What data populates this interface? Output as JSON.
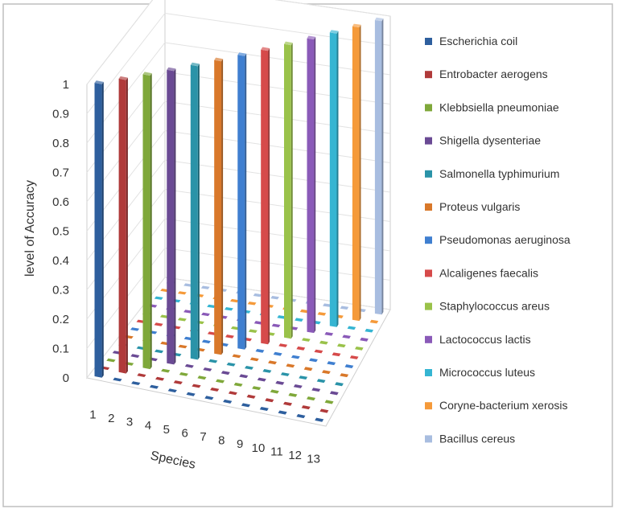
{
  "chart_data": {
    "type": "bar",
    "subtype": "3d-column",
    "xlabel": "Species",
    "ylabel": "level of Accuracy",
    "ylim": [
      0,
      1
    ],
    "yticks": [
      "0",
      "0.1",
      "0.2",
      "0.3",
      "0.4",
      "0.5",
      "0.6",
      "0.7",
      "0.8",
      "0.9",
      "1"
    ],
    "categories": [
      "1",
      "2",
      "3",
      "4",
      "5",
      "6",
      "7",
      "8",
      "9",
      "10",
      "11",
      "12",
      "13"
    ],
    "legend_position": "right",
    "grid": true,
    "series": [
      {
        "name": "Escherichia coil",
        "color": "#2e5f9e",
        "values": [
          1,
          0,
          0,
          0,
          0,
          0,
          0,
          0,
          0,
          0,
          0,
          0,
          0
        ]
      },
      {
        "name": "Entrobacter aerogens",
        "color": "#b03a3a",
        "values": [
          0,
          1,
          0,
          0,
          0,
          0,
          0,
          0,
          0,
          0,
          0,
          0,
          0
        ]
      },
      {
        "name": "Klebbsiella pneumoniae",
        "color": "#7fa83a",
        "values": [
          0,
          0,
          1,
          0,
          0,
          0,
          0,
          0,
          0,
          0,
          0,
          0,
          0
        ]
      },
      {
        "name": "Shigella dysenteriae",
        "color": "#6a4a94",
        "values": [
          0,
          0,
          0,
          1,
          0,
          0,
          0,
          0,
          0,
          0,
          0,
          0,
          0
        ]
      },
      {
        "name": "Salmonella typhimurium",
        "color": "#2a93a8",
        "values": [
          0,
          0,
          0,
          0,
          1,
          0,
          0,
          0,
          0,
          0,
          0,
          0,
          0
        ]
      },
      {
        "name": "Proteus vulgaris",
        "color": "#d9782a",
        "values": [
          0,
          0,
          0,
          0,
          0,
          1,
          0,
          0,
          0,
          0,
          0,
          0,
          0
        ]
      },
      {
        "name": "Pseudomonas aeruginosa",
        "color": "#3f7fd0",
        "values": [
          0,
          0,
          0,
          0,
          0,
          0,
          1,
          0,
          0,
          0,
          0,
          0,
          0
        ]
      },
      {
        "name": "Alcaligenes faecalis",
        "color": "#d64a4a",
        "values": [
          0,
          0,
          0,
          0,
          0,
          0,
          0,
          1,
          0,
          0,
          0,
          0,
          0
        ]
      },
      {
        "name": "Staphylococcus areus",
        "color": "#9ac24a",
        "values": [
          0,
          0,
          0,
          0,
          0,
          0,
          0,
          0,
          1,
          0,
          0,
          0,
          0
        ]
      },
      {
        "name": "Lactococcus lactis",
        "color": "#8a5ab8",
        "values": [
          0,
          0,
          0,
          0,
          0,
          0,
          0,
          0,
          0,
          1,
          0,
          0,
          0
        ]
      },
      {
        "name": "Micrococcus luteus",
        "color": "#35b5d2",
        "values": [
          0,
          0,
          0,
          0,
          0,
          0,
          0,
          0,
          0,
          0,
          1,
          0,
          0
        ]
      },
      {
        "name": "Coryne-bacterium xerosis",
        "color": "#f59a3a",
        "values": [
          0,
          0,
          0,
          0,
          0,
          0,
          0,
          0,
          0,
          0,
          0,
          1,
          0
        ]
      },
      {
        "name": "Bacillus cereus",
        "color": "#a8bde0",
        "values": [
          0,
          0,
          0,
          0,
          0,
          0,
          0,
          0,
          0,
          0,
          0,
          0,
          1
        ]
      }
    ]
  }
}
